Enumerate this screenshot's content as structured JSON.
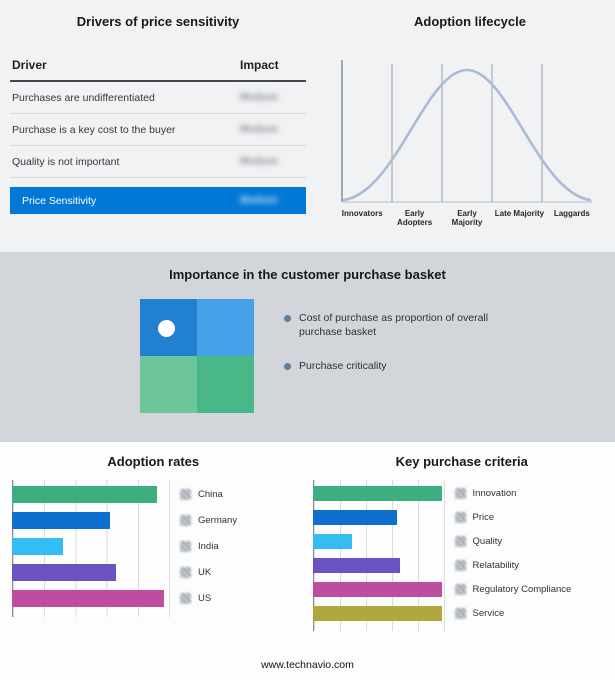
{
  "meta": {
    "footer": "www.technavio.com"
  },
  "drivers": {
    "title": "Drivers of price sensitivity",
    "col_driver": "Driver",
    "col_impact": "Impact",
    "impact_values_blurred": true,
    "rows": [
      {
        "driver": "Purchases are undifferentiated",
        "impact": "Medium"
      },
      {
        "driver": "Purchase is a key cost to the buyer",
        "impact": "Medium"
      },
      {
        "driver": "Quality is not important",
        "impact": "Medium"
      }
    ],
    "summary": {
      "label": "Price Sensitivity",
      "impact": "Medium"
    },
    "summary_color": "#0078d7"
  },
  "basket": {
    "title": "Importance in the customer purchase basket",
    "bullets": [
      "Cost of purchase as proportion of overall purchase basket",
      "Purchase criticality"
    ],
    "quadrant_colors": [
      "#2180cf",
      "#45a1e8",
      "#6cc69a",
      "#49b787"
    ],
    "marker": "white-dot-top-left"
  },
  "chart_data": [
    {
      "type": "line",
      "title": "Adoption lifecycle",
      "shape": "bell-curve",
      "x_labels": [
        "Innovators",
        "Early Adopters",
        "Early Majority",
        "Late Majority",
        "Laggards"
      ],
      "y_relative": [
        5,
        45,
        100,
        45,
        5
      ],
      "line_color": "#a8bcd6",
      "grid": "vertical-stage-dividers"
    },
    {
      "type": "bar",
      "orientation": "horizontal",
      "title": "Adoption rates",
      "categories": [
        "China",
        "Germany",
        "India",
        "UK",
        "US"
      ],
      "values": [
        92,
        62,
        32,
        66,
        96
      ],
      "colors": [
        "#3cae80",
        "#0e6fd0",
        "#33bdf2",
        "#6d52c4",
        "#be4d9f"
      ],
      "xlim": [
        0,
        100
      ],
      "grid": true,
      "icon": "flag-icon",
      "icons_blurred": true
    },
    {
      "type": "bar",
      "orientation": "horizontal",
      "title": "Key purchase criteria",
      "categories": [
        "Innovation",
        "Price",
        "Quality",
        "Relatability",
        "Regulatory Compliance",
        "Service"
      ],
      "values": [
        98,
        64,
        30,
        66,
        98,
        98
      ],
      "colors": [
        "#3cae80",
        "#0e6fd0",
        "#33bdf2",
        "#6d52c4",
        "#be4d9f",
        "#b0a83c"
      ],
      "xlim": [
        0,
        100
      ],
      "grid": true,
      "icon": "criteria-icon",
      "icons_blurred": true
    }
  ]
}
